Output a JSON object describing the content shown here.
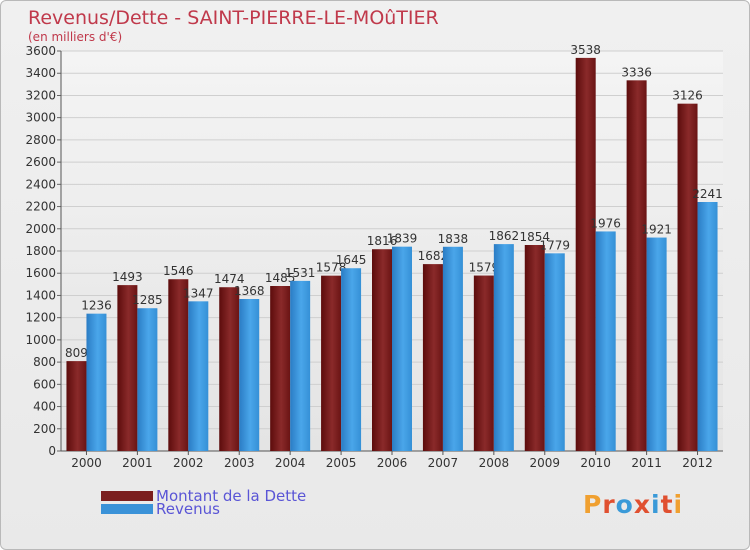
{
  "chart_data": {
    "type": "bar",
    "title": "Revenus/Dette - SAINT-PIERRE-LE-MOûTIER",
    "subtitle": "(en milliers d'€)",
    "categories": [
      "2000",
      "2001",
      "2002",
      "2003",
      "2004",
      "2005",
      "2006",
      "2007",
      "2008",
      "2009",
      "2010",
      "2011",
      "2012"
    ],
    "series": [
      {
        "name": "Montant de la Dette",
        "color": "#7b1e1e",
        "values": [
          809,
          1493,
          1546,
          1474,
          1485,
          1578,
          1816,
          1682,
          1579,
          1854,
          3538,
          3336,
          3126
        ]
      },
      {
        "name": "Revenus",
        "color": "#3a92d8",
        "values": [
          1236,
          1285,
          1347,
          1368,
          1531,
          1645,
          1839,
          1838,
          1862,
          1779,
          1976,
          1921,
          2241
        ]
      }
    ],
    "ylim": [
      0,
      3600
    ],
    "yticks": [
      0,
      200,
      400,
      600,
      800,
      1000,
      1200,
      1400,
      1600,
      1800,
      2000,
      2200,
      2400,
      2600,
      2800,
      3000,
      3200,
      3400,
      3600
    ],
    "grid": true,
    "legend_position": "bottom-left"
  },
  "logo": {
    "text": [
      "P",
      "r",
      "o",
      "x",
      "i",
      "t",
      "i"
    ],
    "colors": [
      "#f0a030",
      "#e05030",
      "#3a9ad8",
      "#e05030",
      "#3a9ad8",
      "#e05030",
      "#f0a030"
    ]
  }
}
